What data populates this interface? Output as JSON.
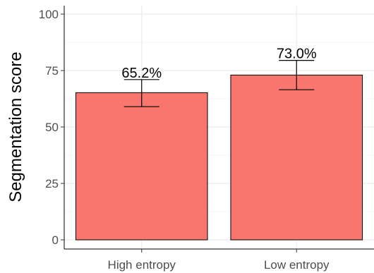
{
  "chart_data": {
    "type": "bar",
    "title": "",
    "xlabel": "",
    "ylabel": "Segmentation score",
    "categories": [
      "High entropy",
      "Low entropy"
    ],
    "values": [
      65.2,
      73.0
    ],
    "error_low": [
      59.0,
      66.5
    ],
    "error_high": [
      71.0,
      79.5
    ],
    "data_labels": [
      "65.2%",
      "73.0%"
    ],
    "ylim": [
      0,
      100
    ],
    "yticks": [
      0,
      25,
      50,
      75,
      100
    ],
    "ytick_labels": [
      "0",
      "25",
      "50",
      "75",
      "100"
    ],
    "grid": true,
    "legend": "none",
    "bar_color": "#F8766D",
    "bar_outline_color": "#000000",
    "grid_color": "#ebebeb"
  }
}
